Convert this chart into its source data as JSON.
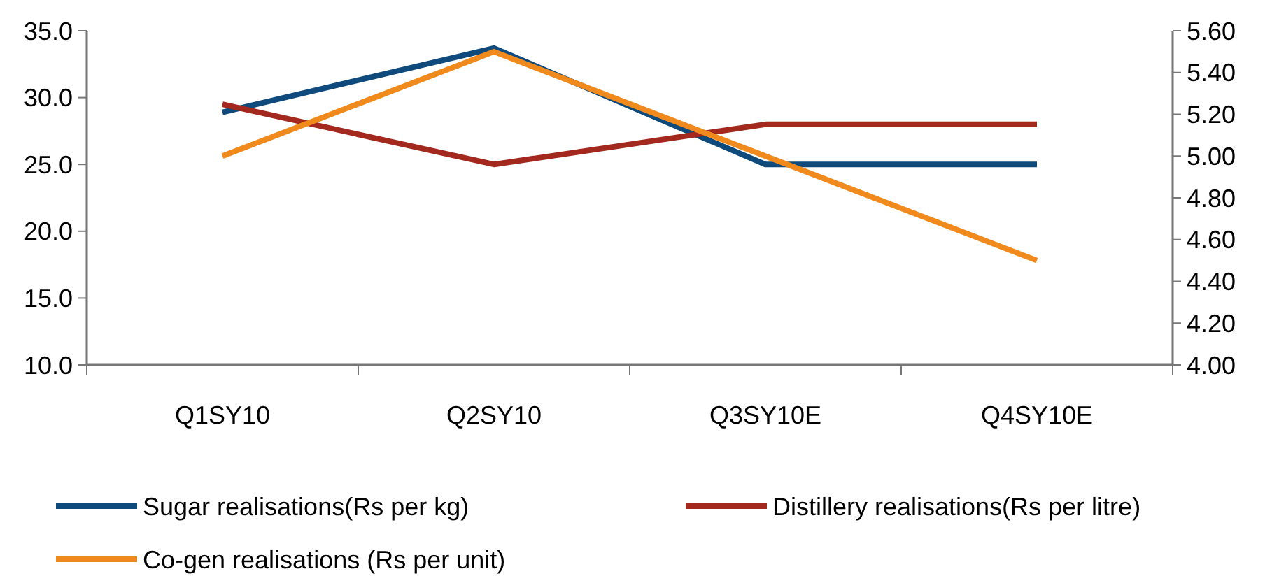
{
  "chart_data": {
    "type": "line",
    "categories": [
      "Q1SY10",
      "Q2SY10",
      "Q3SY10E",
      "Q4SY10E"
    ],
    "series": [
      {
        "name": "Sugar realisations(Rs per kg)",
        "color": "#0e4a7c",
        "values": [
          28.9,
          33.7,
          25.0,
          25.0
        ]
      },
      {
        "name": "Distillery realisations(Rs per litre)",
        "color": "#a3281e",
        "values": [
          29.5,
          25.0,
          28.0,
          28.0
        ]
      },
      {
        "name": "Co-gen realisations (Rs per unit)",
        "color": "#f08a1c",
        "values": [
          5.0,
          5.5,
          5.0,
          4.5
        ],
        "axis": "y2"
      }
    ],
    "ylim": [
      10,
      35
    ],
    "yticks": [
      {
        "value": 10,
        "label": "10.0"
      },
      {
        "value": 15,
        "label": "15.0"
      },
      {
        "value": 20,
        "label": "20.0"
      },
      {
        "value": 25,
        "label": "25.0"
      },
      {
        "value": 30,
        "label": "30.0"
      },
      {
        "value": 35,
        "label": "35.0"
      }
    ],
    "y2lim": [
      4,
      5.6
    ],
    "y2ticks": [
      {
        "value": 4,
        "label": "4.00"
      },
      {
        "value": 4.2,
        "label": "4.20"
      },
      {
        "value": 4.4,
        "label": "4.40"
      },
      {
        "value": 4.6,
        "label": "4.60"
      },
      {
        "value": 4.8,
        "label": "4.80"
      },
      {
        "value": 5,
        "label": "5.00"
      },
      {
        "value": 5.2,
        "label": "5.20"
      },
      {
        "value": 5.4,
        "label": "5.40"
      },
      {
        "value": 5.6,
        "label": "5.60"
      }
    ],
    "legend": "bottom",
    "grid": false,
    "marker": "none",
    "line_style": "solid"
  }
}
